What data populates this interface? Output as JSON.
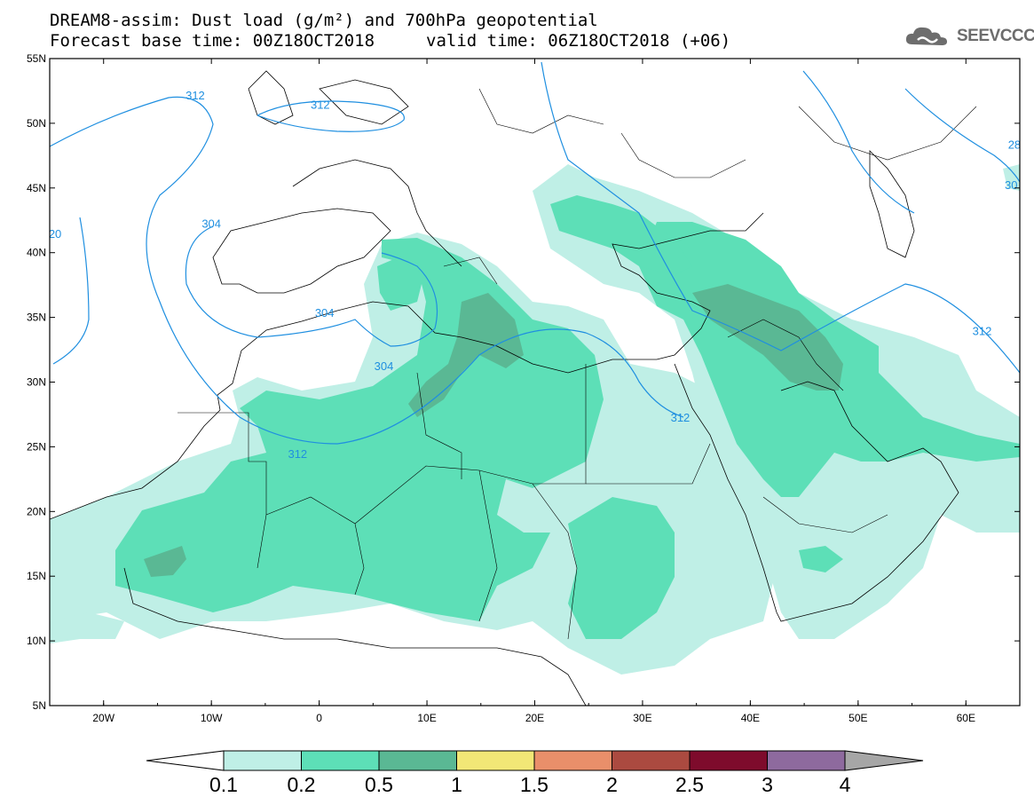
{
  "header": {
    "title_line1": "DREAM8-assim: Dust load (g/m²) and 700hPa geopotential",
    "base_time": "Forecast base time: 00Z18OCT2018",
    "valid_time": "valid time: 06Z18OCT2018 (+06)"
  },
  "logo": {
    "text": "SEEVCCC",
    "icon": "cloud-icon",
    "color": "#6d6d6d"
  },
  "map": {
    "lon_range": [
      -25,
      65
    ],
    "lat_range": [
      5,
      55
    ],
    "lat_ticks": [
      {
        "value": 55,
        "label": "55N"
      },
      {
        "value": 50,
        "label": "50N"
      },
      {
        "value": 45,
        "label": "45N"
      },
      {
        "value": 40,
        "label": "40N"
      },
      {
        "value": 35,
        "label": "35N"
      },
      {
        "value": 30,
        "label": "30N"
      },
      {
        "value": 25,
        "label": "25N"
      },
      {
        "value": 20,
        "label": "20N"
      },
      {
        "value": 15,
        "label": "15N"
      },
      {
        "value": 10,
        "label": "10N"
      },
      {
        "value": 5,
        "label": "5N"
      }
    ],
    "lon_ticks": [
      {
        "value": -20,
        "label": "20W"
      },
      {
        "value": -10,
        "label": "10W"
      },
      {
        "value": 0,
        "label": "0"
      },
      {
        "value": 10,
        "label": "10E"
      },
      {
        "value": 20,
        "label": "20E"
      },
      {
        "value": 30,
        "label": "30E"
      },
      {
        "value": 40,
        "label": "40E"
      },
      {
        "value": 50,
        "label": "50E"
      },
      {
        "value": 60,
        "label": "60E"
      }
    ],
    "contour_color": "#1f8fe0",
    "contour_labels": [
      {
        "text": "312",
        "lon": -11.5,
        "lat": 51.9
      },
      {
        "text": "312",
        "lon": 0.1,
        "lat": 51.2
      },
      {
        "text": "304",
        "lon": -10.0,
        "lat": 42.0
      },
      {
        "text": "304",
        "lon": 0.5,
        "lat": 35.1
      },
      {
        "text": "304",
        "lon": 6.0,
        "lat": 31.0
      },
      {
        "text": "312",
        "lon": -2.0,
        "lat": 24.2
      },
      {
        "text": "312",
        "lon": 33.5,
        "lat": 27.0
      },
      {
        "text": "312",
        "lon": 61.5,
        "lat": 33.7
      },
      {
        "text": "20",
        "lon": -24.5,
        "lat": 41.2
      },
      {
        "text": "28",
        "lon": 64.5,
        "lat": 48.1
      },
      {
        "text": "30",
        "lon": 64.2,
        "lat": 45.0
      }
    ]
  },
  "colorbar": {
    "levels": [
      "0.1",
      "0.2",
      "0.5",
      "1",
      "1.5",
      "2",
      "2.5",
      "3",
      "4"
    ],
    "colors": [
      "#bfefe6",
      "#5ddfb7",
      "#5ab894",
      "#f2e776",
      "#e98f6a",
      "#ab4a40",
      "#7e0b2c",
      "#8e6a9e"
    ],
    "under_color": "#ffffff",
    "over_color": "#a6a6a6"
  }
}
